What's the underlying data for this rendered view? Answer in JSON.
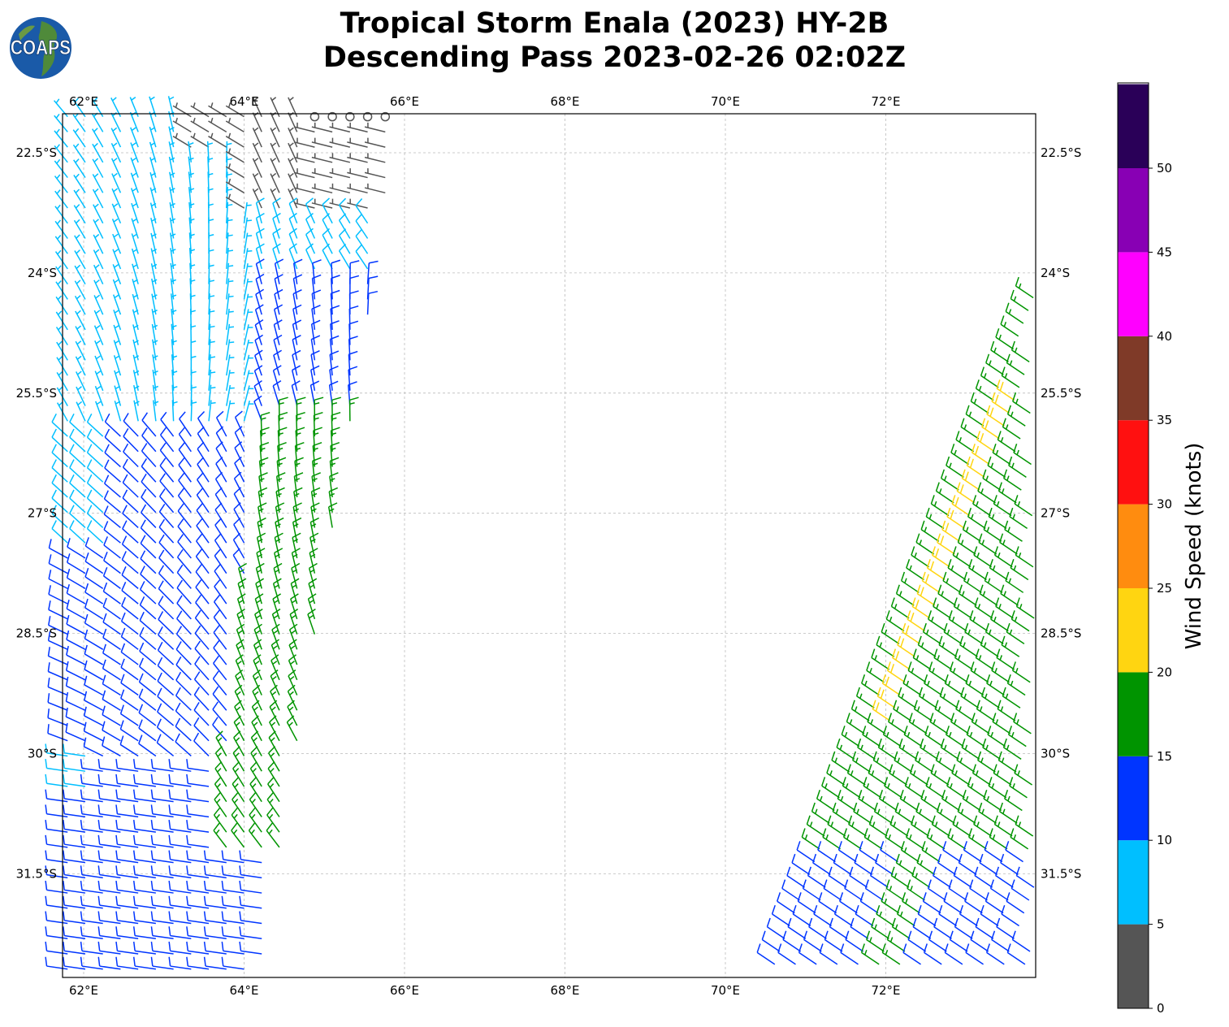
{
  "header": {
    "title_line1": "Tropical Storm Enala (2023) HY-2B",
    "title_line2": "Descending Pass 2023-02-26 02:02Z",
    "logo_text": "COAPS"
  },
  "chart_data": {
    "type": "barb",
    "title": "Tropical Storm Enala (2023) HY-2B Descending Pass 2023-02-26 02:02Z",
    "x_ticks": [
      "62°E",
      "64°E",
      "66°E",
      "68°E",
      "70°E",
      "72°E"
    ],
    "x_tick_values": [
      62,
      64,
      66,
      68,
      70,
      72
    ],
    "y_ticks": [
      "22.5°S",
      "24°S",
      "25.5°S",
      "27°S",
      "28.5°S",
      "30°S",
      "31.5°S"
    ],
    "y_tick_values": [
      22.5,
      24,
      25.5,
      27,
      28.5,
      30,
      31.5
    ],
    "xlim": [
      61.73,
      73.87
    ],
    "ylim_south": [
      22.0,
      32.8
    ],
    "grid": true,
    "colorbar": {
      "label": "Wind Speed (knots)",
      "ticks": [
        "0",
        "5",
        "10",
        "15",
        "20",
        "25",
        "30",
        "35",
        "40",
        "45",
        "50"
      ],
      "levels": [
        0,
        5,
        10,
        15,
        20,
        25,
        30,
        35,
        40,
        45,
        50,
        55
      ],
      "colors": [
        "#555555",
        "#00bfff",
        "#0035ff",
        "#009400",
        "#ffd511",
        "#ff8c0f",
        "#ff1010",
        "#7f3a28",
        "#ff00ff",
        "#8800b4",
        "#2a0058"
      ]
    },
    "swaths": [
      {
        "name": "west swath",
        "lon_west": 61.73,
        "east_edge_north": [
          65.95,
          22.0
        ],
        "east_edge_south": [
          64.2,
          32.8
        ]
      },
      {
        "name": "east swath",
        "lon_east": 73.87,
        "west_edge_north": [
          73.87,
          24.1
        ],
        "west_edge_south": [
          70.5,
          32.8
        ]
      }
    ]
  }
}
